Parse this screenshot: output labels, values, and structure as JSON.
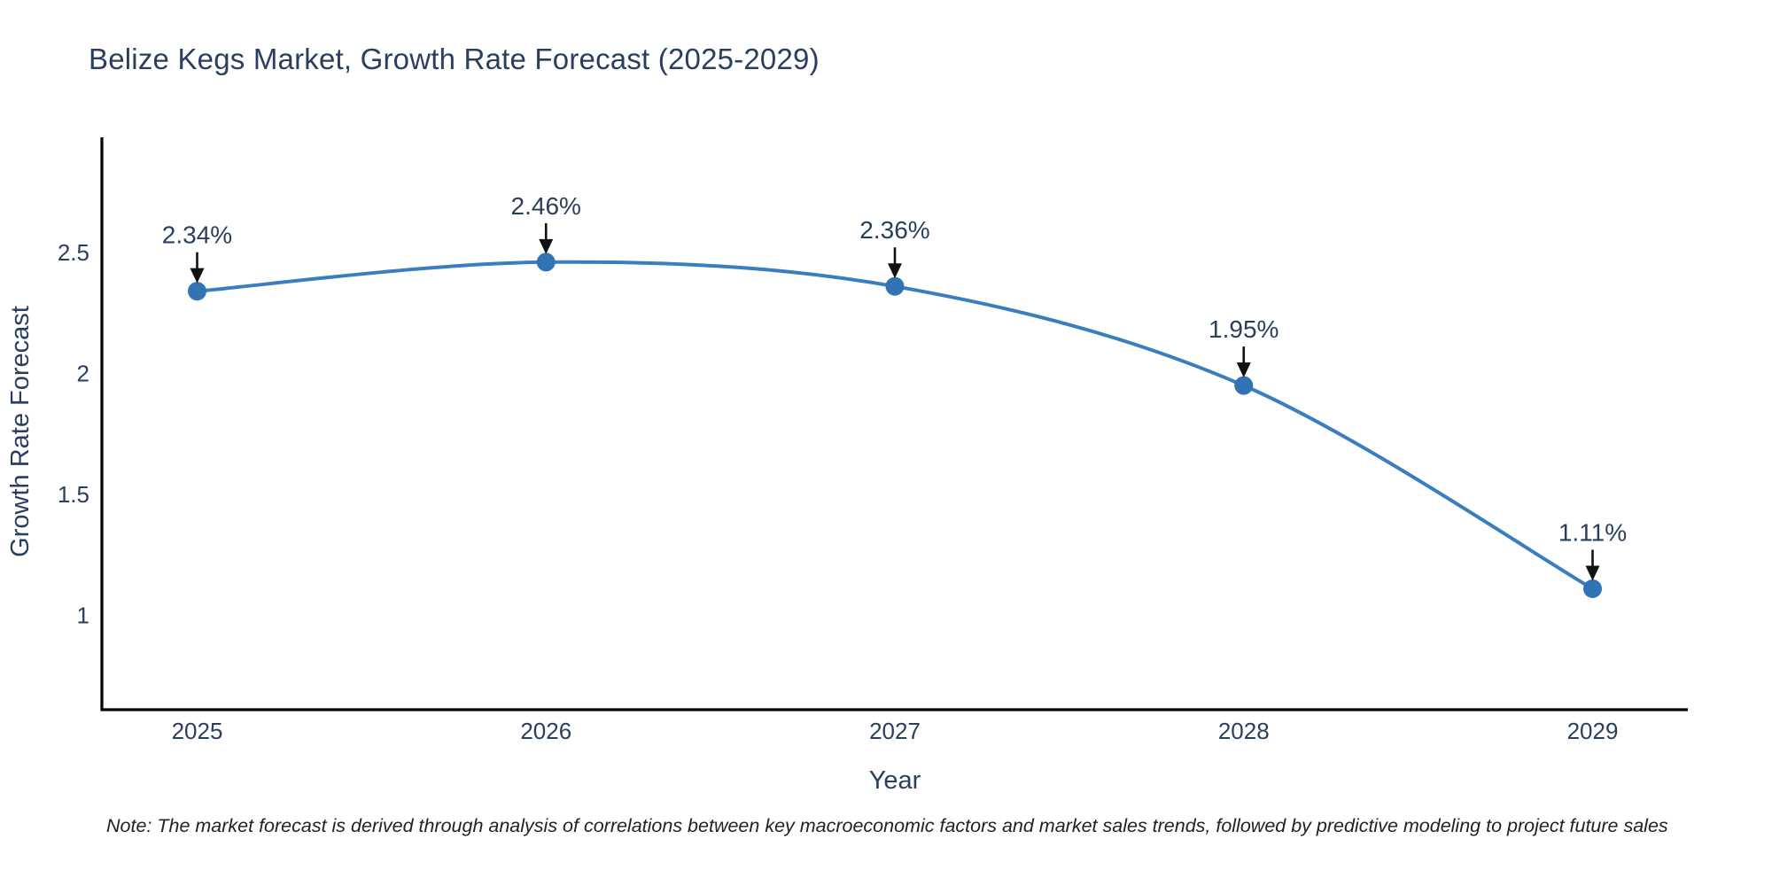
{
  "title": "Belize Kegs Market, Growth Rate Forecast (2025-2029)",
  "note": "Note: The market forecast is derived through analysis of correlations between key macroeconomic factors and market sales trends, followed by predictive modeling to project future sales",
  "chart_data": {
    "type": "line",
    "title": "Belize Kegs Market, Growth Rate Forecast (2025-2029)",
    "xlabel": "Year",
    "ylabel": "Growth Rate Forecast",
    "x": [
      2025,
      2026,
      2027,
      2028,
      2029
    ],
    "values": [
      2.34,
      2.46,
      2.36,
      1.95,
      1.11
    ],
    "point_labels": [
      "2.34%",
      "2.46%",
      "2.36%",
      "1.95%",
      "1.11%"
    ],
    "x_tick_labels": [
      "2025",
      "2026",
      "2027",
      "2028",
      "2029"
    ],
    "y_ticks": [
      1,
      1.5,
      2,
      2.5
    ],
    "y_tick_labels": [
      "1",
      "1.5",
      "2",
      "2.5"
    ],
    "xlim": [
      2024.727,
      2029.273
    ],
    "ylim": [
      0.61,
      2.976
    ],
    "grid": false,
    "legend": "none",
    "line_shape": "spline",
    "colors": {
      "line": "#3a7ebf",
      "marker": "#3273b5",
      "axis_line": "#000000",
      "font": "#2a3f5f",
      "annotation_text": "#2a3f5f",
      "annotation_arrow": "#111111",
      "background": "#ffffff"
    }
  }
}
